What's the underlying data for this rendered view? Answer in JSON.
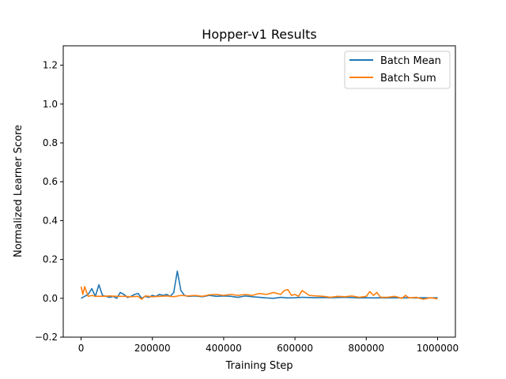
{
  "chart_data": {
    "type": "line",
    "title": "Hopper-v1 Results",
    "xlabel": "Training Step",
    "ylabel": "Normalized Learner Score",
    "xlim": [
      -50000,
      1050000
    ],
    "ylim": [
      -0.2,
      1.3
    ],
    "xticks": [
      0,
      200000,
      400000,
      600000,
      800000,
      1000000
    ],
    "xtick_labels": [
      "0",
      "200000",
      "400000",
      "600000",
      "800000",
      "1000000"
    ],
    "yticks": [
      -0.2,
      0.0,
      0.2,
      0.4,
      0.6,
      0.8,
      1.0,
      1.2
    ],
    "ytick_labels": [
      "−0.2",
      "0.0",
      "0.2",
      "0.4",
      "0.6",
      "0.8",
      "1.0",
      "1.2"
    ],
    "grid": false,
    "legend_position": "top-right",
    "series": [
      {
        "name": "Batch Mean",
        "color": "#1f77b4",
        "x": [
          0,
          10000,
          20000,
          30000,
          40000,
          50000,
          60000,
          70000,
          80000,
          90000,
          100000,
          110000,
          120000,
          130000,
          140000,
          150000,
          160000,
          170000,
          180000,
          190000,
          200000,
          210000,
          220000,
          230000,
          240000,
          250000,
          260000,
          270000,
          280000,
          290000,
          300000,
          320000,
          340000,
          360000,
          380000,
          400000,
          420000,
          440000,
          460000,
          480000,
          500000,
          520000,
          540000,
          560000,
          580000,
          600000,
          620000,
          640000,
          660000,
          680000,
          700000,
          720000,
          740000,
          760000,
          780000,
          800000,
          820000,
          840000,
          860000,
          880000,
          900000,
          920000,
          940000,
          960000,
          980000,
          1000000
        ],
        "y": [
          0.0,
          0.01,
          0.02,
          0.05,
          0.01,
          0.07,
          0.015,
          0.01,
          0.005,
          0.01,
          0.0,
          0.03,
          0.02,
          0.005,
          0.01,
          0.02,
          0.025,
          0.0,
          0.01,
          0.005,
          0.015,
          0.01,
          0.02,
          0.015,
          0.02,
          0.01,
          0.03,
          0.14,
          0.04,
          0.015,
          0.01,
          0.012,
          0.008,
          0.015,
          0.01,
          0.012,
          0.01,
          0.005,
          0.012,
          0.008,
          0.005,
          0.002,
          0.0,
          0.005,
          0.002,
          0.003,
          0.005,
          0.004,
          0.003,
          0.004,
          0.003,
          0.004,
          0.005,
          0.004,
          0.002,
          0.003,
          0.002,
          0.003,
          0.002,
          0.003,
          0.002,
          0.003,
          0.002,
          0.003,
          0.002,
          0.003
        ]
      },
      {
        "name": "Batch Sum",
        "color": "#ff7f0e",
        "x": [
          0,
          5000,
          10000,
          20000,
          30000,
          40000,
          60000,
          80000,
          100000,
          120000,
          140000,
          160000,
          170000,
          180000,
          200000,
          220000,
          240000,
          260000,
          280000,
          300000,
          320000,
          340000,
          360000,
          380000,
          400000,
          420000,
          440000,
          460000,
          480000,
          500000,
          520000,
          540000,
          560000,
          570000,
          580000,
          590000,
          600000,
          610000,
          620000,
          640000,
          660000,
          680000,
          700000,
          720000,
          740000,
          760000,
          780000,
          800000,
          810000,
          820000,
          830000,
          840000,
          860000,
          880000,
          900000,
          910000,
          920000,
          940000,
          960000,
          980000,
          1000000
        ],
        "y": [
          0.06,
          0.02,
          0.06,
          0.01,
          0.015,
          0.01,
          0.01,
          0.012,
          0.01,
          0.01,
          0.008,
          0.01,
          -0.005,
          0.012,
          0.008,
          0.01,
          0.012,
          0.008,
          0.015,
          0.012,
          0.015,
          0.01,
          0.018,
          0.02,
          0.015,
          0.02,
          0.015,
          0.02,
          0.015,
          0.025,
          0.02,
          0.03,
          0.02,
          0.04,
          0.045,
          0.015,
          0.02,
          0.01,
          0.04,
          0.015,
          0.012,
          0.01,
          0.005,
          0.01,
          0.008,
          0.012,
          0.005,
          0.01,
          0.035,
          0.015,
          0.03,
          0.005,
          0.005,
          0.01,
          0.0,
          0.015,
          0.002,
          0.005,
          -0.005,
          0.003,
          -0.003
        ]
      }
    ]
  }
}
